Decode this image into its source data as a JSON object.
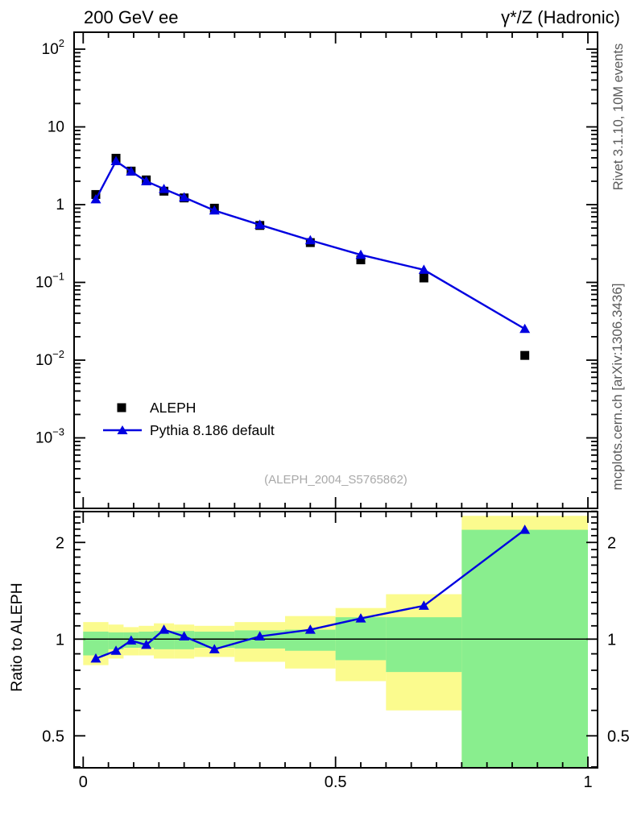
{
  "header": {
    "title_left": "200 GeV ee",
    "title_right": "γ*/Z (Hadronic)"
  },
  "side_labels": {
    "top_right": "Rivet 3.1.10,  10M events",
    "bottom_right": "mcplots.cern.ch [arXiv:1306.3436]"
  },
  "watermark": "(ALEPH_2004_S5765862)",
  "legend": {
    "items": [
      {
        "label": "ALEPH",
        "marker": "square",
        "color": "#000000"
      },
      {
        "label": "Pythia 8.186 default",
        "marker": "triangle-line",
        "color": "#0000e0"
      }
    ]
  },
  "colors": {
    "mc_blue": "#0000e0",
    "band_yellow": "#fbfb8e",
    "band_green": "#89ee8e",
    "data_black": "#000000",
    "watermark_gray": "#a9a9a9",
    "side_text_gray": "#5a5a5a",
    "frame": "#000000"
  },
  "chart_data": [
    {
      "type": "scatter",
      "title": "200 GeV ee  /  γ*/Z (Hadronic)",
      "xlabel": "",
      "ylabel": "",
      "xlim": [
        -0.018,
        1.019
      ],
      "yscale": "log",
      "ylim": [
        0.00012,
        165
      ],
      "grid": false,
      "legend_position": "lower-left",
      "bin_edges": [
        0.0,
        0.05,
        0.08,
        0.11,
        0.14,
        0.18,
        0.22,
        0.3,
        0.4,
        0.5,
        0.6,
        0.75,
        1.0
      ],
      "x": [
        0.025,
        0.065,
        0.095,
        0.125,
        0.16,
        0.2,
        0.26,
        0.35,
        0.45,
        0.55,
        0.675,
        0.875
      ],
      "series": [
        {
          "name": "ALEPH",
          "marker": "square",
          "line": false,
          "color": "#000000",
          "values": [
            1.35,
            3.95,
            2.7,
            2.08,
            1.49,
            1.22,
            0.9,
            0.54,
            0.325,
            0.195,
            0.114,
            0.0115
          ]
        },
        {
          "name": "Pythia 8.186 default",
          "marker": "triangle",
          "line": true,
          "color": "#0000e0",
          "values": [
            1.17,
            3.63,
            2.67,
            2.0,
            1.59,
            1.24,
            0.84,
            0.55,
            0.348,
            0.226,
            0.145,
            0.0252
          ]
        }
      ],
      "yticks": [
        {
          "v": 100,
          "label": "10",
          "exp": "2"
        },
        {
          "v": 10,
          "label": "10",
          "exp": ""
        },
        {
          "v": 1,
          "label": "1",
          "exp": ""
        },
        {
          "v": 0.1,
          "label": "10",
          "exp": "−1"
        },
        {
          "v": 0.01,
          "label": "10",
          "exp": "−2"
        },
        {
          "v": 0.001,
          "label": "10",
          "exp": "−3"
        }
      ]
    },
    {
      "type": "line",
      "ylabel": "Ratio to ALEPH",
      "yscale": "log",
      "ylim": [
        0.397,
        2.52
      ],
      "xlim": [
        -0.018,
        1.019
      ],
      "x": [
        0.025,
        0.065,
        0.095,
        0.125,
        0.16,
        0.2,
        0.26,
        0.35,
        0.45,
        0.55,
        0.675,
        0.875
      ],
      "values": [
        0.87,
        0.92,
        0.99,
        0.96,
        1.07,
        1.02,
        0.93,
        1.02,
        1.07,
        1.16,
        1.27,
        2.19
      ],
      "reference_line": 1,
      "bin_edges": [
        0.0,
        0.05,
        0.08,
        0.11,
        0.14,
        0.18,
        0.22,
        0.3,
        0.4,
        0.5,
        0.6,
        0.75,
        1.0
      ],
      "bands": {
        "yellow": [
          [
            0.83,
            1.13
          ],
          [
            0.87,
            1.11
          ],
          [
            0.89,
            1.09
          ],
          [
            0.89,
            1.1
          ],
          [
            0.87,
            1.12
          ],
          [
            0.87,
            1.11
          ],
          [
            0.88,
            1.1
          ],
          [
            0.85,
            1.13
          ],
          [
            0.81,
            1.18
          ],
          [
            0.74,
            1.25
          ],
          [
            0.6,
            1.38
          ],
          [
            0.38,
            2.42
          ]
        ],
        "green": [
          [
            0.89,
            1.055
          ],
          [
            0.93,
            1.05
          ],
          [
            0.94,
            1.05
          ],
          [
            0.94,
            1.055
          ],
          [
            0.93,
            1.06
          ],
          [
            0.93,
            1.06
          ],
          [
            0.94,
            1.055
          ],
          [
            0.935,
            1.065
          ],
          [
            0.92,
            1.07
          ],
          [
            0.86,
            1.17
          ],
          [
            0.79,
            1.17
          ],
          [
            0.38,
            2.19
          ]
        ]
      },
      "yticks": [
        {
          "v": 2,
          "label": "2"
        },
        {
          "v": 1,
          "label": "1"
        },
        {
          "v": 0.5,
          "label": "0.5"
        }
      ],
      "xticks": [
        {
          "v": 0,
          "label": "0"
        },
        {
          "v": 0.5,
          "label": "0.5"
        },
        {
          "v": 1,
          "label": "1"
        }
      ]
    }
  ]
}
